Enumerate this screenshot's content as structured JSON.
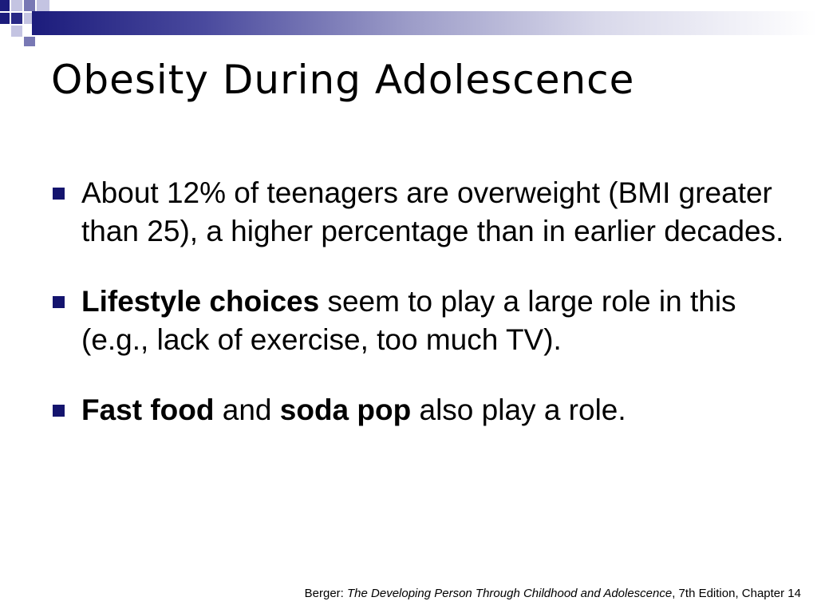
{
  "title": "Obesity During Adolescence",
  "colors": {
    "bullet": "#14146e",
    "band_dark": "#1c1c7c",
    "band_light": "#c4c4e2"
  },
  "bullets": [
    {
      "text": "About 12% of teenagers are overweight (BMI greater than 25), a higher percentage than in earlier decades."
    },
    {
      "bold": "Lifestyle choices",
      "rest": " seem to play a large role in this (e.g., lack of exercise, too much TV)."
    },
    {
      "bold1": "Fast food",
      "mid": " and ",
      "bold2": "soda pop",
      "rest": " also play a role."
    }
  ],
  "footer": {
    "prefix": "Berger: ",
    "book": "The Developing Person Through Childhood and Adolescence",
    "suffix": ", 7th Edition, Chapter 14"
  }
}
